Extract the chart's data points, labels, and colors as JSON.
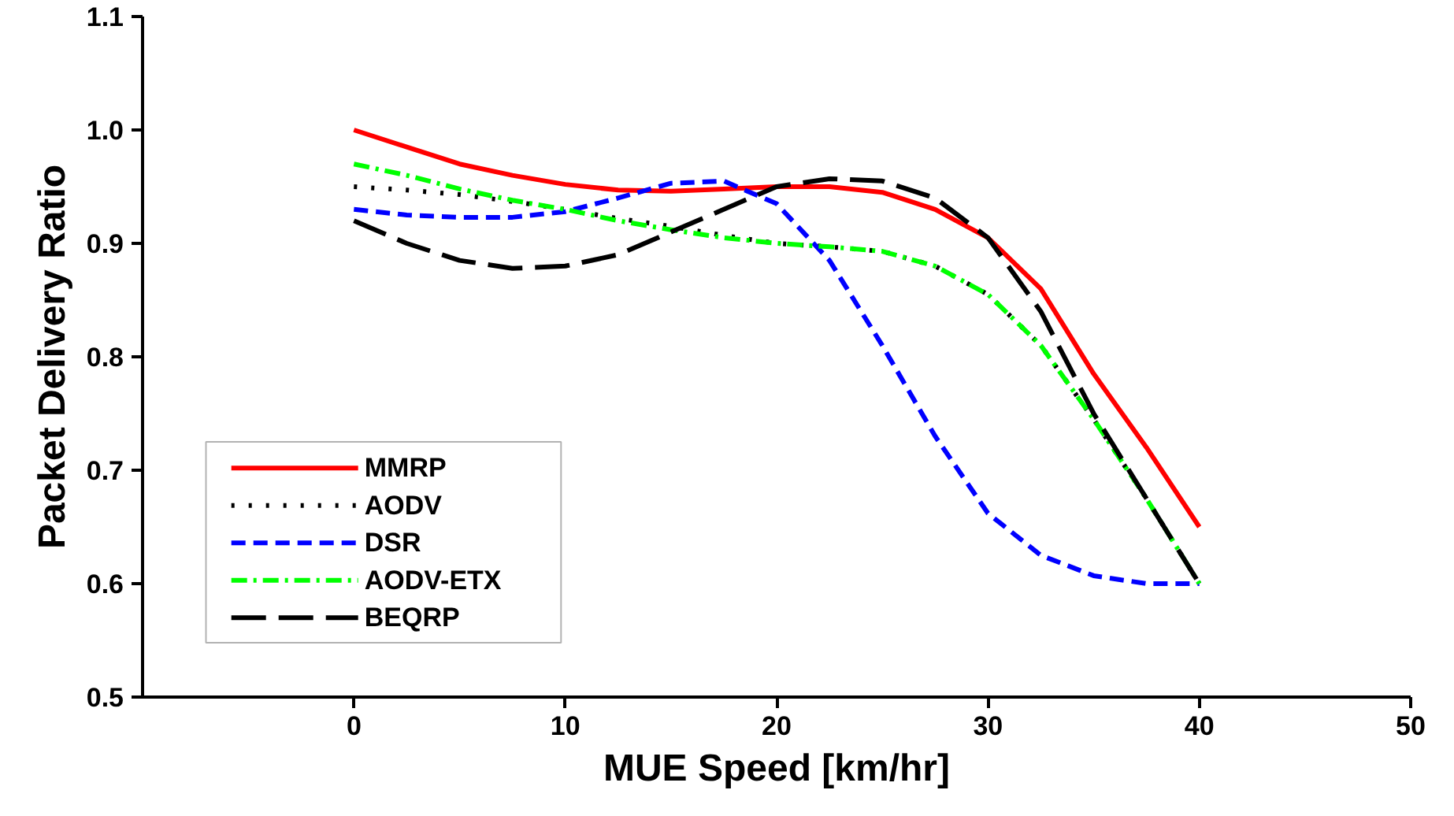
{
  "chart_data": {
    "type": "line",
    "xlabel": "MUE Speed [km/hr]",
    "ylabel": "Packet Delivery Ratio",
    "x": [
      0,
      2.5,
      5,
      7.5,
      10,
      12.5,
      15,
      17.5,
      20,
      22.5,
      25,
      27.5,
      30,
      32.5,
      35,
      37.5,
      40
    ],
    "series": [
      {
        "name": "MMRP",
        "color": "#ff0000",
        "line_style": "solid",
        "values": [
          1.0,
          0.985,
          0.97,
          0.96,
          0.952,
          0.947,
          0.946,
          0.948,
          0.95,
          0.95,
          0.945,
          0.93,
          0.905,
          0.86,
          0.785,
          0.72,
          0.65
        ]
      },
      {
        "name": "AODV",
        "color": "#000000",
        "line_style": "dotted",
        "values": [
          0.95,
          0.947,
          0.943,
          0.937,
          0.93,
          0.922,
          0.915,
          0.907,
          0.9,
          0.897,
          0.893,
          0.88,
          0.855,
          0.81,
          0.745,
          0.675,
          0.6
        ]
      },
      {
        "name": "DSR",
        "color": "#0000ff",
        "line_style": "dashed",
        "values": [
          0.93,
          0.925,
          0.923,
          0.923,
          0.928,
          0.94,
          0.953,
          0.955,
          0.935,
          0.885,
          0.81,
          0.73,
          0.662,
          0.625,
          0.607,
          0.6,
          0.6
        ]
      },
      {
        "name": "AODV-ETX",
        "color": "#00ff00",
        "line_style": "dashdot",
        "values": [
          0.97,
          0.96,
          0.948,
          0.938,
          0.93,
          0.92,
          0.912,
          0.905,
          0.9,
          0.897,
          0.893,
          0.88,
          0.855,
          0.81,
          0.745,
          0.675,
          0.6
        ]
      },
      {
        "name": "BEQRP",
        "color": "#000000",
        "line_style": "longdash",
        "values": [
          0.92,
          0.9,
          0.885,
          0.878,
          0.88,
          0.89,
          0.91,
          0.93,
          0.95,
          0.957,
          0.955,
          0.94,
          0.905,
          0.84,
          0.75,
          0.675,
          0.6
        ]
      }
    ],
    "xlim": [
      -10,
      50
    ],
    "xticks": [
      0,
      10,
      20,
      30,
      40,
      50
    ],
    "ylim": [
      0.5,
      1.1
    ],
    "yticks": [
      {
        "value": 0.5,
        "label": "0.5"
      },
      {
        "value": 0.6,
        "label": "0.6"
      },
      {
        "value": 0.7,
        "label": "0.7"
      },
      {
        "value": 0.8,
        "label": "0.8"
      },
      {
        "value": 0.9,
        "label": "0.9"
      },
      {
        "value": 1,
        "label": "1.0"
      },
      {
        "value": 1.1,
        "label": "1.1"
      }
    ],
    "grid": false,
    "legend": "bottom left"
  }
}
